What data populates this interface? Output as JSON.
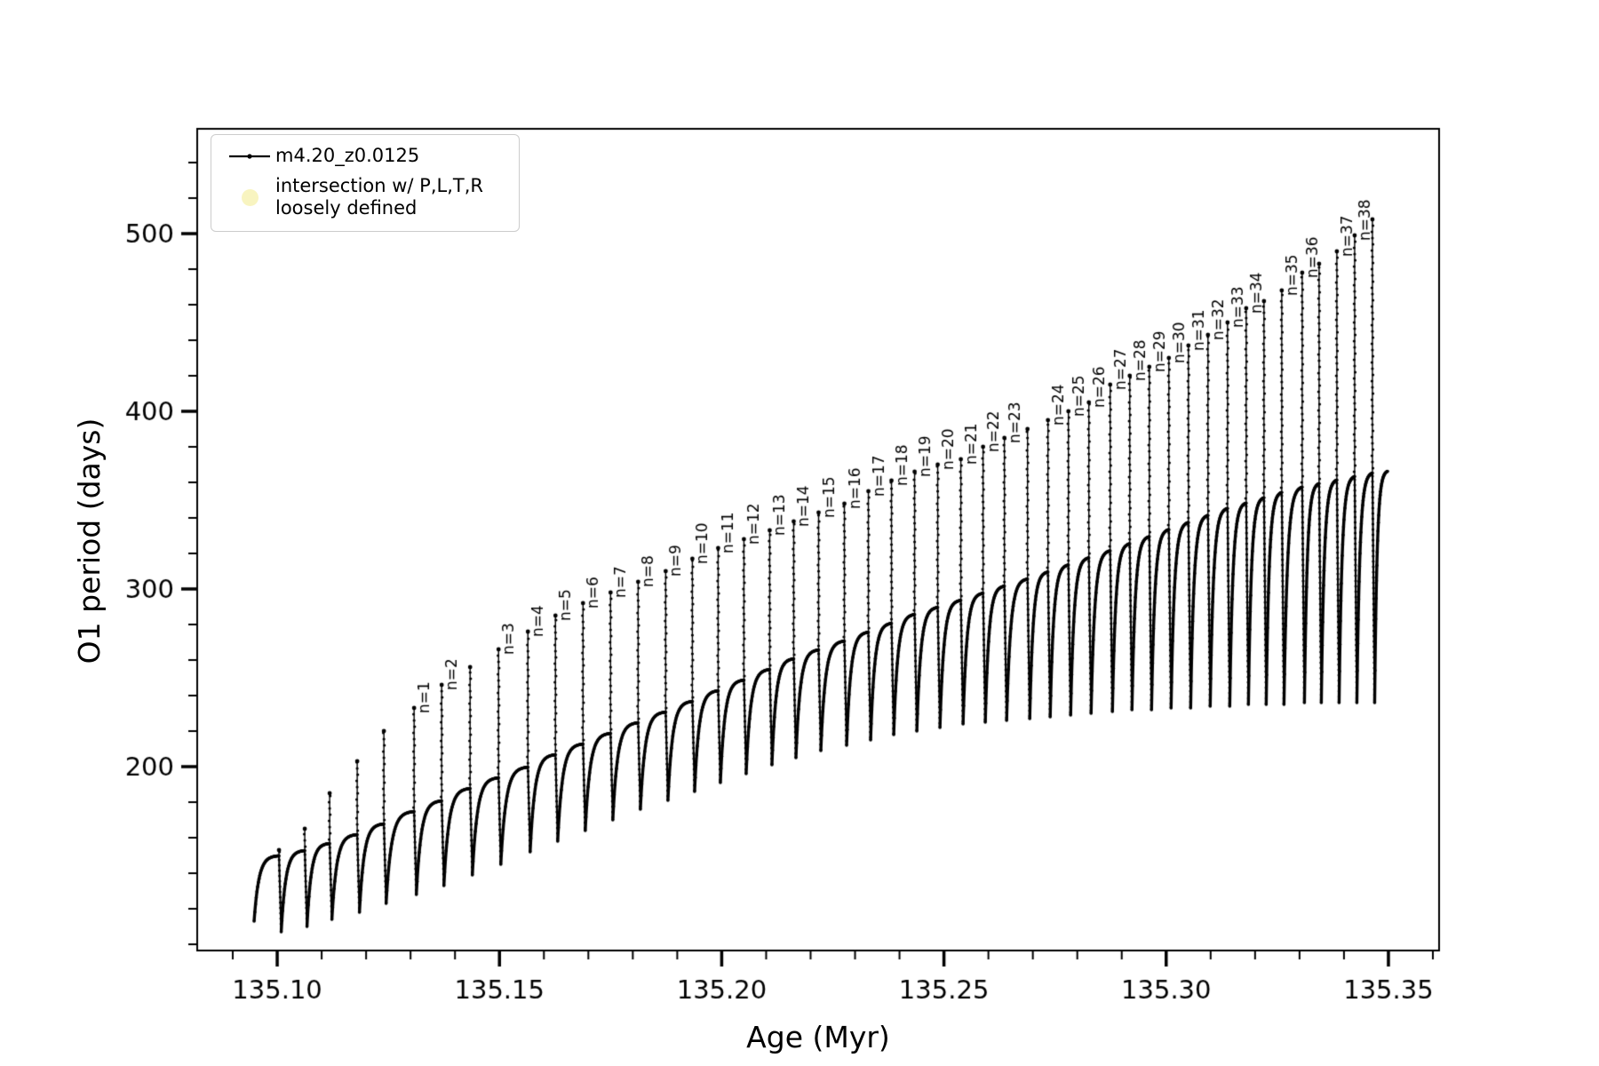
{
  "figure": {
    "background": "#ffffff",
    "line_color": "#000000"
  },
  "legend": {
    "entries": [
      {
        "marker": "line-dot",
        "color": "#000000",
        "label": "m4.20_z0.0125"
      },
      {
        "marker": "circle",
        "color": "#f8f4c0",
        "label_line1": "intersection w/ P,L,T,R",
        "label_line2": "loosely defined"
      }
    ]
  },
  "chart_data": {
    "type": "line",
    "title": "",
    "xlabel": "Age (Myr)",
    "ylabel": "O1 period (days)",
    "series": [
      {
        "name": "m4.20_z0.0125",
        "marker": "point",
        "color": "#000000"
      }
    ],
    "xlim": [
      135.082,
      135.3614
    ],
    "ylim": [
      96.5,
      559
    ],
    "x_major_ticks": [
      135.1,
      135.15,
      135.2,
      135.25,
      135.3,
      135.35
    ],
    "x_major_labels": [
      "135.10",
      "135.15",
      "135.20",
      "135.25",
      "135.30",
      "135.35"
    ],
    "x_minor_range": [
      135.09,
      135.36
    ],
    "x_minor_step": 0.01,
    "y_major_ticks": [
      200,
      300,
      400,
      500
    ],
    "y_major_labels": [
      "200",
      "300",
      "400",
      "500"
    ],
    "y_minor_range": [
      100,
      540
    ],
    "y_minor_step": 20,
    "grid": false,
    "legend_position": "upper-left",
    "start_age": 135.0948,
    "start_dip": 113,
    "teeth": [
      {
        "age": 135.1004,
        "label": null,
        "peak": 153,
        "top": 150,
        "dip": 113
      },
      {
        "age": 135.1062,
        "label": null,
        "peak": 165,
        "top": 153,
        "dip": 107
      },
      {
        "age": 135.1118,
        "label": null,
        "peak": 185,
        "top": 157,
        "dip": 110
      },
      {
        "age": 135.118,
        "label": null,
        "peak": 203,
        "top": 162,
        "dip": 114
      },
      {
        "age": 135.124,
        "label": null,
        "peak": 220,
        "top": 168,
        "dip": 118
      },
      {
        "age": 135.1308,
        "label": "n=1",
        "peak": 233,
        "top": 175,
        "dip": 123
      },
      {
        "age": 135.137,
        "label": "n=2",
        "peak": 246,
        "top": 181,
        "dip": 128
      },
      {
        "age": 135.1434,
        "label": null,
        "peak": 256,
        "top": 188,
        "dip": 133
      },
      {
        "age": 135.1498,
        "label": "n=3",
        "peak": 266,
        "top": 194,
        "dip": 139
      },
      {
        "age": 135.1564,
        "label": "n=4",
        "peak": 276,
        "top": 200,
        "dip": 145
      },
      {
        "age": 135.1626,
        "label": "n=5",
        "peak": 285,
        "top": 207,
        "dip": 152
      },
      {
        "age": 135.1688,
        "label": "n=6",
        "peak": 292,
        "top": 213,
        "dip": 158
      },
      {
        "age": 135.175,
        "label": "n=7",
        "peak": 298,
        "top": 219,
        "dip": 164
      },
      {
        "age": 135.1812,
        "label": "n=8",
        "peak": 304,
        "top": 225,
        "dip": 170
      },
      {
        "age": 135.1874,
        "label": "n=9",
        "peak": 310,
        "top": 231,
        "dip": 176
      },
      {
        "age": 135.1934,
        "label": "n=10",
        "peak": 317,
        "top": 237,
        "dip": 181
      },
      {
        "age": 135.1992,
        "label": "n=11",
        "peak": 323,
        "top": 243,
        "dip": 186
      },
      {
        "age": 135.205,
        "label": "n=12",
        "peak": 328,
        "top": 249,
        "dip": 191
      },
      {
        "age": 135.2108,
        "label": "n=13",
        "peak": 333,
        "top": 255,
        "dip": 196
      },
      {
        "age": 135.2162,
        "label": "n=14",
        "peak": 338,
        "top": 261,
        "dip": 201
      },
      {
        "age": 135.2218,
        "label": "n=15",
        "peak": 343,
        "top": 266,
        "dip": 205
      },
      {
        "age": 135.2276,
        "label": "n=16",
        "peak": 348,
        "top": 271,
        "dip": 209
      },
      {
        "age": 135.233,
        "label": "n=17",
        "peak": 355,
        "top": 276,
        "dip": 212
      },
      {
        "age": 135.2382,
        "label": "n=18",
        "peak": 361,
        "top": 281,
        "dip": 215
      },
      {
        "age": 135.2434,
        "label": "n=19",
        "peak": 366,
        "top": 286,
        "dip": 218
      },
      {
        "age": 135.2486,
        "label": "n=20",
        "peak": 370,
        "top": 290,
        "dip": 220
      },
      {
        "age": 135.2538,
        "label": "n=21",
        "peak": 373,
        "top": 294,
        "dip": 222
      },
      {
        "age": 135.2588,
        "label": "n=22",
        "peak": 380,
        "top": 298,
        "dip": 224
      },
      {
        "age": 135.2636,
        "label": "n=23",
        "peak": 385,
        "top": 302,
        "dip": 225
      },
      {
        "age": 135.2688,
        "label": null,
        "peak": 390,
        "top": 306,
        "dip": 226
      },
      {
        "age": 135.2734,
        "label": "n=24",
        "peak": 395,
        "top": 310,
        "dip": 227
      },
      {
        "age": 135.278,
        "label": "n=25",
        "peak": 400,
        "top": 314,
        "dip": 228
      },
      {
        "age": 135.2826,
        "label": "n=26",
        "peak": 405,
        "top": 318,
        "dip": 229
      },
      {
        "age": 135.2874,
        "label": "n=27",
        "peak": 415,
        "top": 322,
        "dip": 230
      },
      {
        "age": 135.2918,
        "label": "n=28",
        "peak": 420,
        "top": 326,
        "dip": 231
      },
      {
        "age": 135.2962,
        "label": "n=29",
        "peak": 425,
        "top": 330,
        "dip": 232
      },
      {
        "age": 135.3006,
        "label": "n=30",
        "peak": 430,
        "top": 334,
        "dip": 232
      },
      {
        "age": 135.305,
        "label": "n=31",
        "peak": 437,
        "top": 338,
        "dip": 233
      },
      {
        "age": 135.3094,
        "label": "n=32",
        "peak": 443,
        "top": 342,
        "dip": 233
      },
      {
        "age": 135.3138,
        "label": "n=33",
        "peak": 450,
        "top": 346,
        "dip": 234
      },
      {
        "age": 135.318,
        "label": "n=34",
        "peak": 458,
        "top": 349,
        "dip": 234
      },
      {
        "age": 135.322,
        "label": null,
        "peak": 462,
        "top": 352,
        "dip": 235
      },
      {
        "age": 135.326,
        "label": "n=35",
        "peak": 468,
        "top": 355,
        "dip": 235
      },
      {
        "age": 135.3306,
        "label": "n=36",
        "peak": 478,
        "top": 358,
        "dip": 235
      },
      {
        "age": 135.3344,
        "label": null,
        "peak": 483,
        "top": 360,
        "dip": 236
      },
      {
        "age": 135.3384,
        "label": "n=37",
        "peak": 490,
        "top": 362,
        "dip": 236
      },
      {
        "age": 135.3424,
        "label": "n=38",
        "peak": 499,
        "top": 364,
        "dip": 236
      },
      {
        "age": 135.3464,
        "label": null,
        "peak": 508,
        "top": 366,
        "dip": 236
      },
      {
        "age": 135.3498,
        "label": null,
        "peak": null,
        "top": 367,
        "dip": 236
      }
    ]
  }
}
